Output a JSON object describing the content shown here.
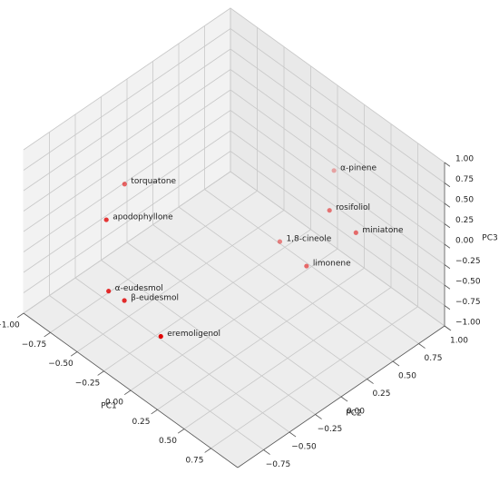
{
  "chart_data": {
    "type": "scatter3d",
    "labels": [
      "torquatone",
      "apodophyllone",
      "α-eudesmol",
      "β-eudesmol",
      "eremoligenol",
      "α-pinene",
      "rosifoliol",
      "miniatone",
      "1,8-cineole",
      "limonene"
    ],
    "x": [
      -0.53,
      -0.43,
      -0.38,
      -0.3,
      0.05,
      0.17,
      0.36,
      0.52,
      0.07,
      0.3
    ],
    "y": [
      -0.51,
      -0.79,
      -0.82,
      -0.75,
      -0.76,
      0.79,
      0.55,
      0.64,
      0.37,
      0.39
    ],
    "z": [
      0.6,
      0.5,
      -0.3,
      -0.4,
      -0.5,
      0.3,
      0.2,
      0.0,
      -0.3,
      -0.4
    ],
    "color": "#e00000",
    "xlabel": "PC1",
    "ylabel": "PC2",
    "zlabel": "PC3",
    "xlim": [
      -1,
      1
    ],
    "ylim": [
      -1,
      1
    ],
    "zlim": [
      -1,
      1
    ],
    "xticks": [
      {
        "value": -1,
        "label": "−1.00"
      },
      {
        "value": -0.75,
        "label": "−0.75"
      },
      {
        "value": -0.5,
        "label": "−0.50"
      },
      {
        "value": -0.25,
        "label": "−0.25"
      },
      {
        "value": 0,
        "label": "0.00"
      },
      {
        "value": 0.25,
        "label": "0.25"
      },
      {
        "value": 0.5,
        "label": "0.50"
      },
      {
        "value": 0.75,
        "label": "0.75"
      }
    ],
    "yticks": [
      {
        "value": -0.75,
        "label": "−0.75"
      },
      {
        "value": -0.5,
        "label": "−0.50"
      },
      {
        "value": -0.25,
        "label": "−0.25"
      },
      {
        "value": 0,
        "label": "0.00"
      },
      {
        "value": 0.25,
        "label": "0.25"
      },
      {
        "value": 0.5,
        "label": "0.50"
      },
      {
        "value": 0.75,
        "label": "0.75"
      },
      {
        "value": 1,
        "label": "1.00"
      }
    ],
    "zticks": [
      {
        "value": 1,
        "label": "1.00"
      },
      {
        "value": 0.75,
        "label": "0.75"
      },
      {
        "value": 0.5,
        "label": "0.50"
      },
      {
        "value": 0.25,
        "label": "0.25"
      },
      {
        "value": 0,
        "label": "0.00"
      },
      {
        "value": -0.25,
        "label": "−0.25"
      },
      {
        "value": -0.5,
        "label": "−0.50"
      },
      {
        "value": -0.75,
        "label": "−0.75"
      },
      {
        "value": -1,
        "label": "−1.00"
      }
    ],
    "grid": true
  }
}
